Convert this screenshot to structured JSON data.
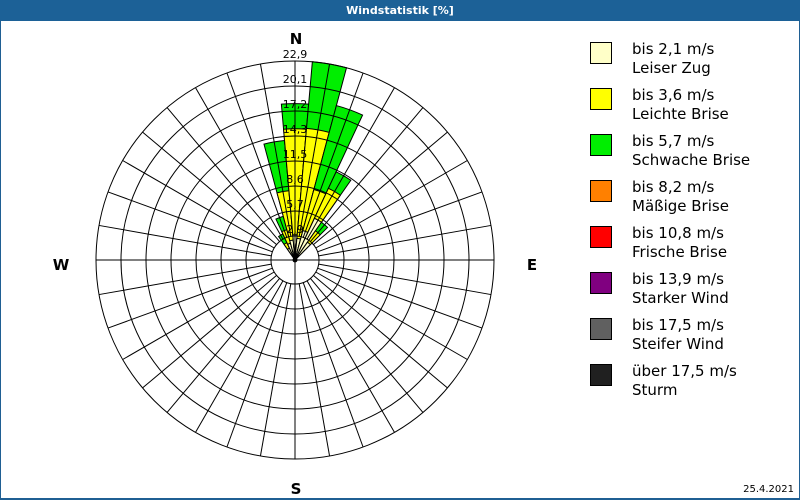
{
  "window": {
    "title": "Windstatistik [%]",
    "date": "25.4.2021"
  },
  "compass": {
    "N": "N",
    "E": "E",
    "S": "S",
    "W": "W"
  },
  "legend": [
    {
      "line1": "bis 2,1 m/s",
      "line2": "Leiser Zug",
      "color": "#ffffc8"
    },
    {
      "line1": "bis 3,6 m/s",
      "line2": "Leichte Brise",
      "color": "#ffff00"
    },
    {
      "line1": "bis 5,7 m/s",
      "line2": "Schwache Brise",
      "color": "#00ee00"
    },
    {
      "line1": "bis 8,2 m/s",
      "line2": "Mäßige Brise",
      "color": "#ff8000"
    },
    {
      "line1": "bis 10,8 m/s",
      "line2": "Frische Brise",
      "color": "#ff0000"
    },
    {
      "line1": "bis 13,9 m/s",
      "line2": "Starker Wind",
      "color": "#800080"
    },
    {
      "line1": "bis 17,5 m/s",
      "line2": "Steifer Wind",
      "color": "#606060"
    },
    {
      "line1": "über 17,5 m/s",
      "line2": "Sturm",
      "color": "#202020"
    }
  ],
  "chart_data": {
    "type": "polar-stacked-bar",
    "title": "Windstatistik [%]",
    "radial_ticks": [
      "2,9",
      "5,7",
      "8,6",
      "11,5",
      "14,3",
      "17,2",
      "20,1",
      "22,9"
    ],
    "radial_max": 22.9,
    "sector_width_deg": 10,
    "series": [
      "bis 2,1 m/s",
      "bis 3,6 m/s",
      "bis 5,7 m/s",
      "bis 8,2 m/s",
      "bis 10,8 m/s",
      "bis 13,9 m/s",
      "bis 17,5 m/s",
      "über 17,5 m/s"
    ],
    "sectors": [
      {
        "dir": 330,
        "cumulative": [
          1.5,
          2.2,
          3.3
        ]
      },
      {
        "dir": 340,
        "cumulative": [
          2.0,
          3.6,
          5.2
        ]
      },
      {
        "dir": 350,
        "cumulative": [
          2.3,
          8.0,
          13.8
        ]
      },
      {
        "dir": 0,
        "cumulative": [
          2.9,
          15.1,
          18.0
        ]
      },
      {
        "dir": 10,
        "cumulative": [
          2.5,
          15.2,
          22.9
        ]
      },
      {
        "dir": 20,
        "cumulative": [
          3.5,
          8.4,
          18.4
        ]
      },
      {
        "dir": 30,
        "cumulative": [
          5.3,
          9.1,
          11.2
        ]
      },
      {
        "dir": 40,
        "cumulative": [
          2.5,
          4.1,
          5.3
        ]
      }
    ]
  }
}
